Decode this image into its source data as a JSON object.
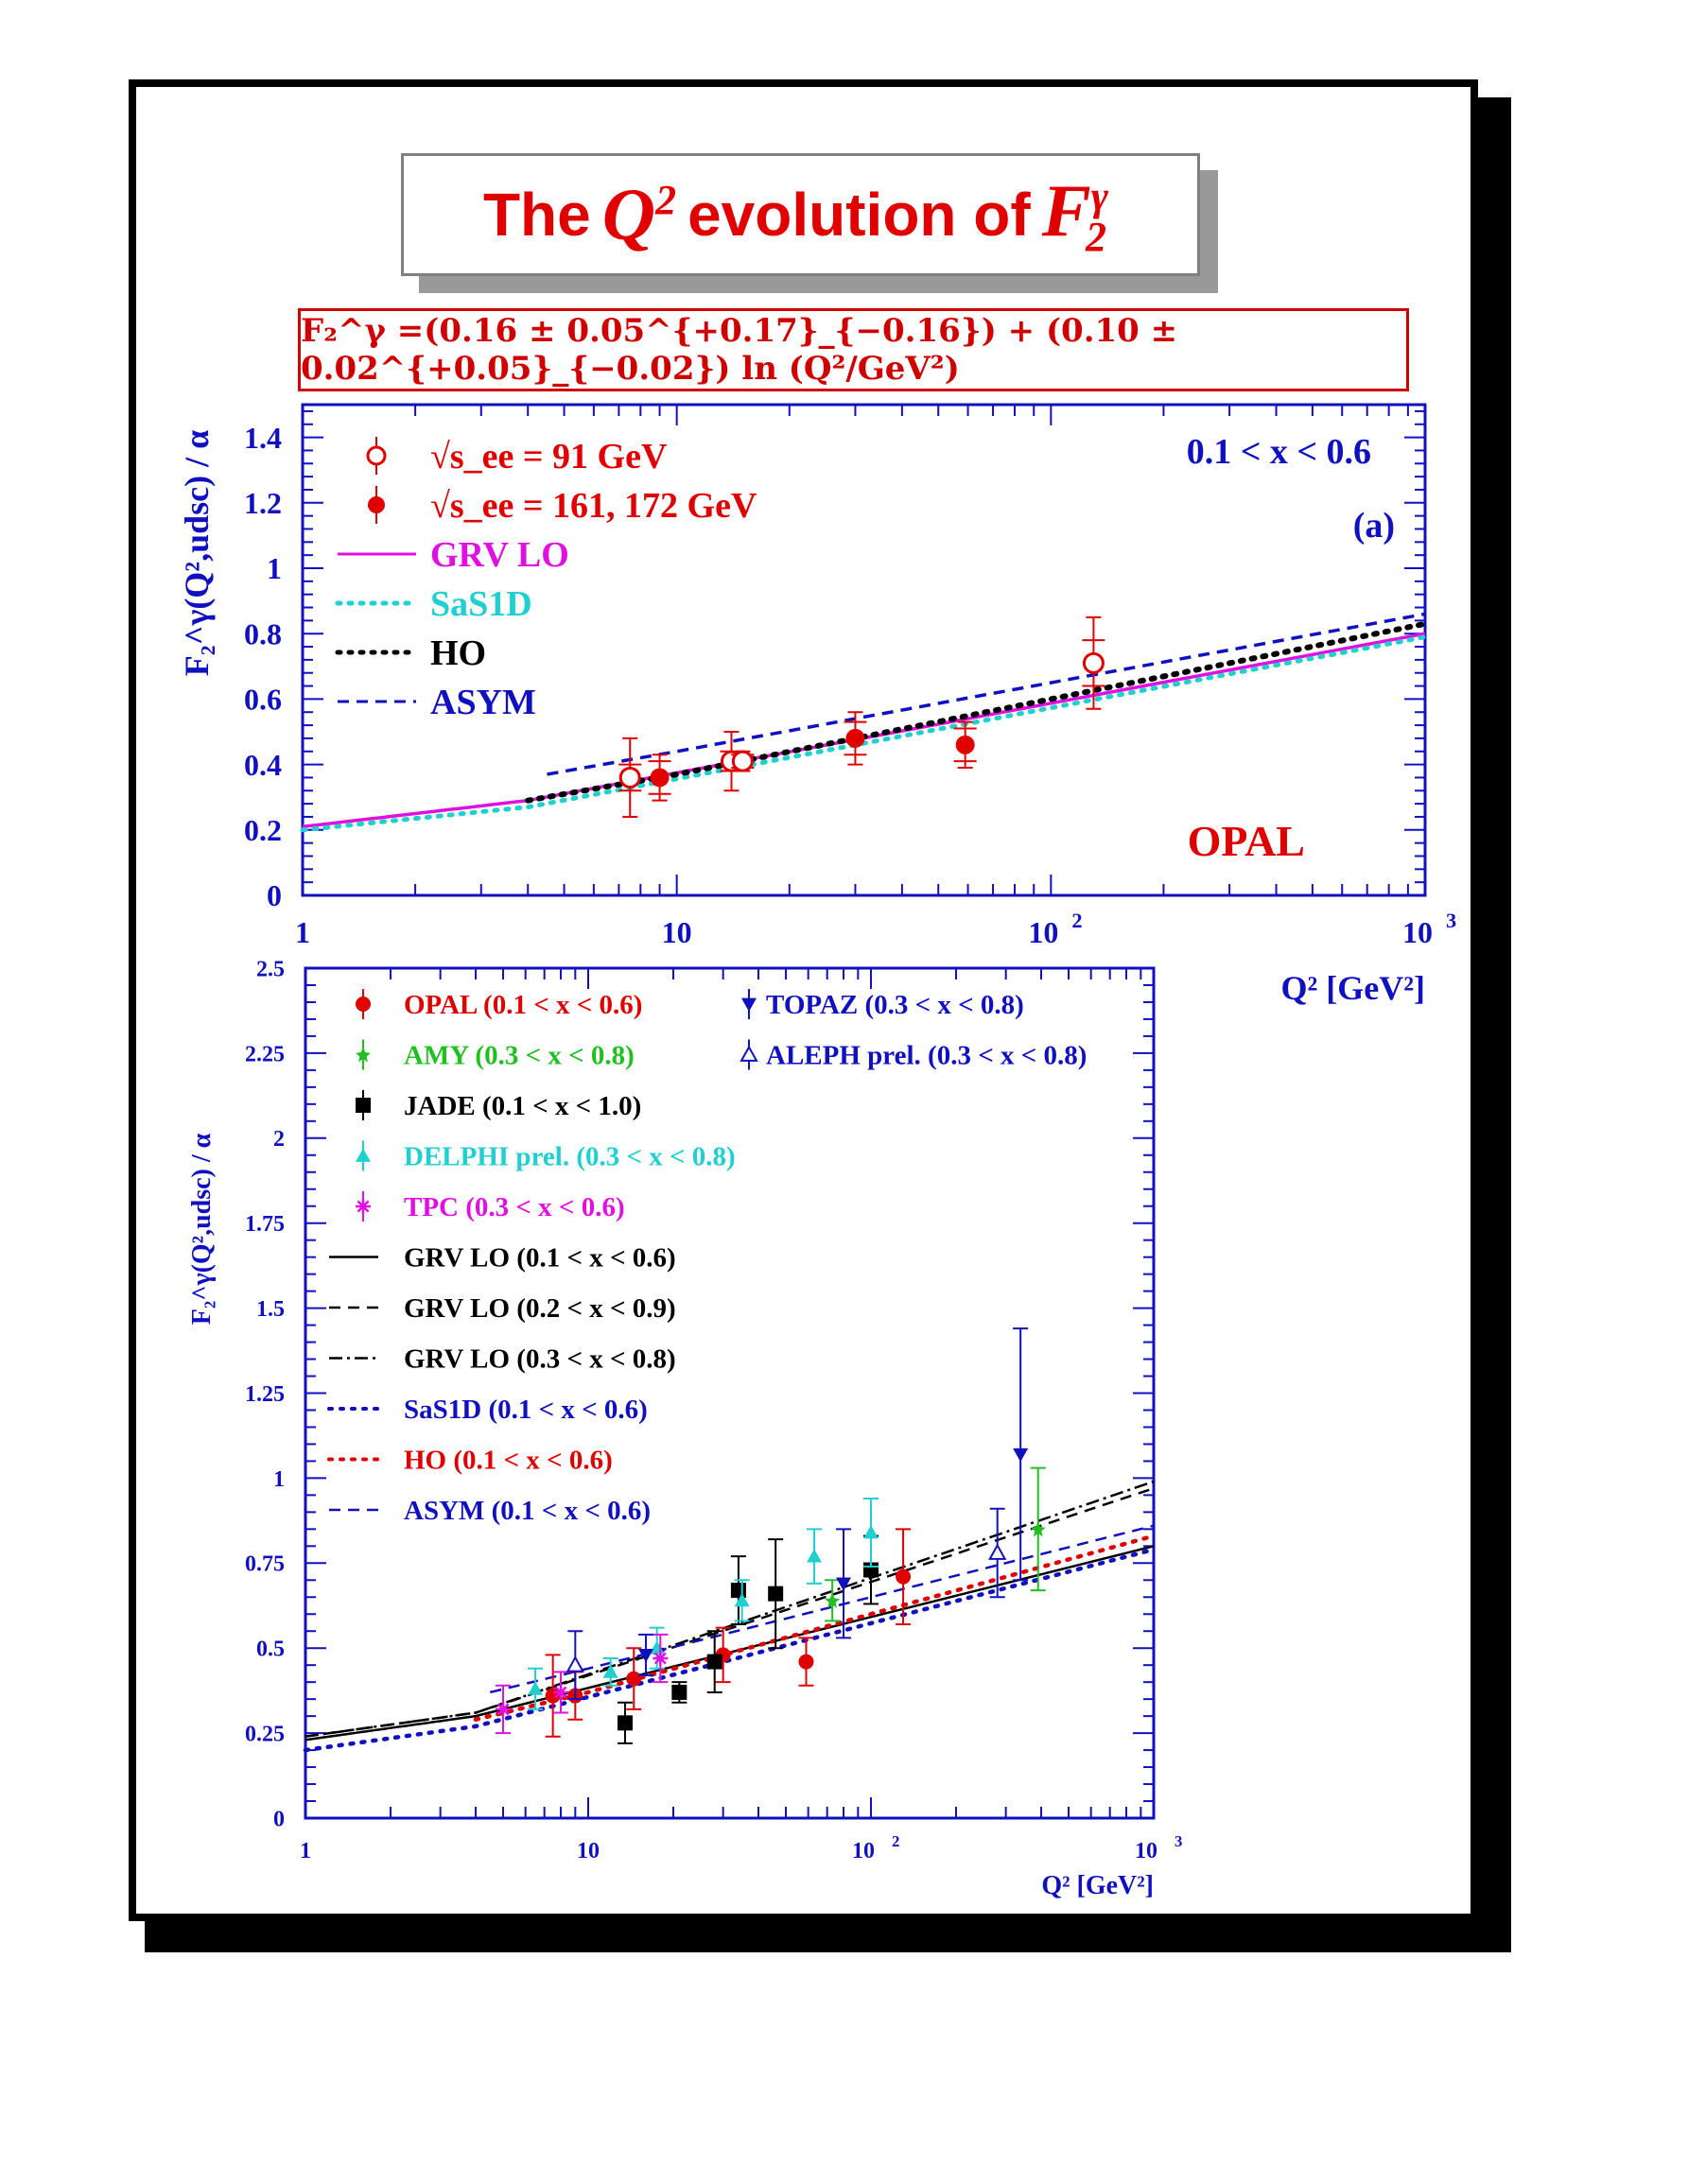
{
  "header": {
    "title_parts": [
      "The",
      "Q",
      "2",
      "evolution of",
      "F",
      "γ",
      "2"
    ],
    "fit_formula": "F₂^γ =(0.16 ± 0.05^{+0.17}_{−0.16}) + (0.10 ± 0.02^{+0.05}_{−0.02}) ln (Q²/GeV²)"
  },
  "colors": {
    "red": "#e00000",
    "blue": "#1010c0",
    "magenta": "#e010e0",
    "cyan": "#20d0d0",
    "green": "#20c020",
    "black": "#000000"
  },
  "chart_data": [
    {
      "type": "line",
      "panel": "a",
      "ylabel": "F₂^γ(Q²,udsc) / α",
      "xlabel": "Q² [GeV²]",
      "xscale": "log",
      "xlim": [
        1,
        1000
      ],
      "ylim": [
        0,
        1.5
      ],
      "x_tick_labels": [
        "1",
        "10",
        "10²",
        "10³"
      ],
      "y_tick_labels": [
        "0",
        "0.2",
        "0.4",
        "0.6",
        "0.8",
        "1",
        "1.2",
        "1.4"
      ],
      "annotations": [
        "0.1 < x < 0.6",
        "(a)",
        "OPAL"
      ],
      "legend_position": "top-left",
      "legend": [
        {
          "label": "√s_ee = 91 GeV",
          "style": "open-circle",
          "color": "#e00000"
        },
        {
          "label": "√s_ee = 161, 172 GeV",
          "style": "filled-circle",
          "color": "#e00000"
        },
        {
          "label": "GRV LO",
          "style": "solid",
          "color": "#e010e0"
        },
        {
          "label": "SaS1D",
          "style": "dotted",
          "color": "#20d0d0"
        },
        {
          "label": "HO",
          "style": "dotted",
          "color": "#000000"
        },
        {
          "label": "ASYM",
          "style": "dashed",
          "color": "#1010c0"
        }
      ],
      "points": [
        {
          "series": "√s_ee = 91 GeV",
          "x": 7.5,
          "y": 0.36,
          "err_stat": 0.04,
          "err_tot": 0.12
        },
        {
          "series": "√s_ee = 91 GeV",
          "x": 14.0,
          "y": 0.41,
          "err_stat": 0.03,
          "err_tot": 0.09
        },
        {
          "series": "√s_ee = 91 GeV",
          "x": 15.0,
          "y": 0.41,
          "err_stat": 0.02,
          "err_tot": 0.03
        },
        {
          "series": "√s_ee = 91 GeV",
          "x": 130.0,
          "y": 0.71,
          "err_stat": 0.07,
          "err_tot": 0.14
        },
        {
          "series": "√s_ee = 161, 172 GeV",
          "x": 9.0,
          "y": 0.36,
          "err_stat": 0.05,
          "err_tot": 0.07
        },
        {
          "series": "√s_ee = 161, 172 GeV",
          "x": 30.0,
          "y": 0.48,
          "err_stat": 0.05,
          "err_tot": 0.08
        },
        {
          "series": "√s_ee = 161, 172 GeV",
          "x": 59.0,
          "y": 0.46,
          "err_stat": 0.05,
          "err_tot": 0.07
        }
      ],
      "curves": [
        {
          "name": "GRV LO",
          "x": [
            1,
            4,
            1000
          ],
          "y": [
            0.21,
            0.29,
            0.8
          ]
        },
        {
          "name": "SaS1D",
          "x": [
            1,
            4,
            1000
          ],
          "y": [
            0.2,
            0.27,
            0.79
          ]
        },
        {
          "name": "HO",
          "x": [
            4,
            10,
            1000
          ],
          "y": [
            0.29,
            0.37,
            0.83
          ]
        },
        {
          "name": "ASYM",
          "x": [
            4.5,
            10,
            1000
          ],
          "y": [
            0.37,
            0.44,
            0.86
          ]
        }
      ]
    },
    {
      "type": "line",
      "panel": "b",
      "ylabel": "F₂^γ(Q²,udsc) / α",
      "xlabel": "Q² [GeV²]",
      "xscale": "log",
      "xlim": [
        1,
        1000
      ],
      "ylim": [
        0,
        2.5
      ],
      "x_tick_labels": [
        "1",
        "10",
        "10²",
        "10³"
      ],
      "y_tick_labels": [
        "0",
        "0.25",
        "0.5",
        "0.75",
        "1",
        "1.25",
        "1.5",
        "1.75",
        "2",
        "2.25",
        "2.5"
      ],
      "legend_position": "top-left",
      "legend": [
        {
          "label": "OPAL (0.1 < x < 0.6)",
          "style": "filled-circle",
          "color": "#e00000"
        },
        {
          "label": "AMY (0.3 < x < 0.8)",
          "style": "star",
          "color": "#20c020"
        },
        {
          "label": "JADE (0.1 < x < 1.0)",
          "style": "filled-square",
          "color": "#000000"
        },
        {
          "label": "DELPHI prel. (0.3 < x < 0.8)",
          "style": "filled-triangle",
          "color": "#20d0d0"
        },
        {
          "label": "TPC (0.3 < x < 0.6)",
          "style": "asterisk",
          "color": "#e010e0"
        },
        {
          "label": "GRV LO (0.1 < x < 0.6)",
          "style": "solid",
          "color": "#000000"
        },
        {
          "label": "GRV LO (0.2 < x < 0.9)",
          "style": "dashed",
          "color": "#000000"
        },
        {
          "label": "GRV LO (0.3 < x < 0.8)",
          "style": "dashdot",
          "color": "#000000"
        },
        {
          "label": "SaS1D (0.1 < x < 0.6)",
          "style": "dotted",
          "color": "#1010c0"
        },
        {
          "label": "HO (0.1 < x < 0.6)",
          "style": "dotted",
          "color": "#e00000"
        },
        {
          "label": "ASYM (0.1 < x < 0.6)",
          "style": "dashed",
          "color": "#1010c0"
        },
        {
          "label": "TOPAZ (0.3 < x < 0.8)",
          "style": "down-triangle",
          "color": "#1010c0"
        },
        {
          "label": "ALEPH prel. (0.3 < x < 0.8)",
          "style": "open-triangle",
          "color": "#1010c0"
        }
      ],
      "points": [
        {
          "series": "OPAL",
          "x": 7.5,
          "y": 0.36,
          "err": 0.12
        },
        {
          "series": "OPAL",
          "x": 9.0,
          "y": 0.36,
          "err": 0.07
        },
        {
          "series": "OPAL",
          "x": 14.5,
          "y": 0.41,
          "err": 0.09
        },
        {
          "series": "OPAL",
          "x": 30.0,
          "y": 0.48,
          "err": 0.08
        },
        {
          "series": "OPAL",
          "x": 59.0,
          "y": 0.46,
          "err": 0.07
        },
        {
          "series": "OPAL",
          "x": 130.0,
          "y": 0.71,
          "err": 0.14
        },
        {
          "series": "AMY",
          "x": 73.0,
          "y": 0.64,
          "err": 0.06
        },
        {
          "series": "AMY",
          "x": 390.0,
          "y": 0.85,
          "err": 0.18
        },
        {
          "series": "JADE",
          "x": 13.5,
          "y": 0.28,
          "err": 0.06
        },
        {
          "series": "JADE",
          "x": 21.0,
          "y": 0.37,
          "err": 0.03
        },
        {
          "series": "JADE",
          "x": 28.0,
          "y": 0.46,
          "err": 0.09
        },
        {
          "series": "JADE",
          "x": 34.0,
          "y": 0.67,
          "err": 0.1
        },
        {
          "series": "JADE",
          "x": 46.0,
          "y": 0.66,
          "err": 0.16
        },
        {
          "series": "JADE",
          "x": 100.0,
          "y": 0.73,
          "err": 0.1
        },
        {
          "series": "DELPHI",
          "x": 6.5,
          "y": 0.38,
          "err": 0.06
        },
        {
          "series": "DELPHI",
          "x": 12.0,
          "y": 0.43,
          "err": 0.04
        },
        {
          "series": "DELPHI",
          "x": 17.5,
          "y": 0.5,
          "err": 0.06
        },
        {
          "series": "DELPHI",
          "x": 35.0,
          "y": 0.64,
          "err": 0.06
        },
        {
          "series": "DELPHI",
          "x": 63.0,
          "y": 0.77,
          "err": 0.08
        },
        {
          "series": "DELPHI",
          "x": 100.0,
          "y": 0.84,
          "err": 0.1
        },
        {
          "series": "TPC",
          "x": 5.0,
          "y": 0.32,
          "err": 0.07
        },
        {
          "series": "TPC",
          "x": 8.0,
          "y": 0.37,
          "err": 0.06
        },
        {
          "series": "TPC",
          "x": 18.0,
          "y": 0.47,
          "err": 0.07
        },
        {
          "series": "TOPAZ",
          "x": 16.0,
          "y": 0.48,
          "err": 0.06
        },
        {
          "series": "TOPAZ",
          "x": 80.0,
          "y": 0.69,
          "err": 0.16
        },
        {
          "series": "TOPAZ",
          "x": 338.0,
          "y": 1.07,
          "err": 0.37
        },
        {
          "series": "ALEPH",
          "x": 9.0,
          "y": 0.45,
          "err": 0.1
        },
        {
          "series": "ALEPH",
          "x": 280.0,
          "y": 0.78,
          "err": 0.13
        }
      ],
      "curves": [
        {
          "name": "GRV LO (0.1 < x < 0.6)",
          "x": [
            1,
            4,
            1000
          ],
          "y": [
            0.23,
            0.3,
            0.8
          ]
        },
        {
          "name": "GRV LO (0.2 < x < 0.9)",
          "x": [
            1,
            4,
            1000
          ],
          "y": [
            0.24,
            0.31,
            0.97
          ]
        },
        {
          "name": "GRV LO (0.3 < x < 0.8)",
          "x": [
            1,
            4,
            1000
          ],
          "y": [
            0.24,
            0.31,
            0.99
          ]
        },
        {
          "name": "SaS1D (0.1 < x < 0.6)",
          "x": [
            1,
            4,
            1000
          ],
          "y": [
            0.2,
            0.27,
            0.79
          ]
        },
        {
          "name": "HO (0.1 < x < 0.6)",
          "x": [
            4,
            10,
            1000
          ],
          "y": [
            0.29,
            0.37,
            0.83
          ]
        },
        {
          "name": "ASYM (0.1 < x < 0.6)",
          "x": [
            4.5,
            10,
            1000
          ],
          "y": [
            0.37,
            0.44,
            0.86
          ]
        }
      ]
    }
  ]
}
